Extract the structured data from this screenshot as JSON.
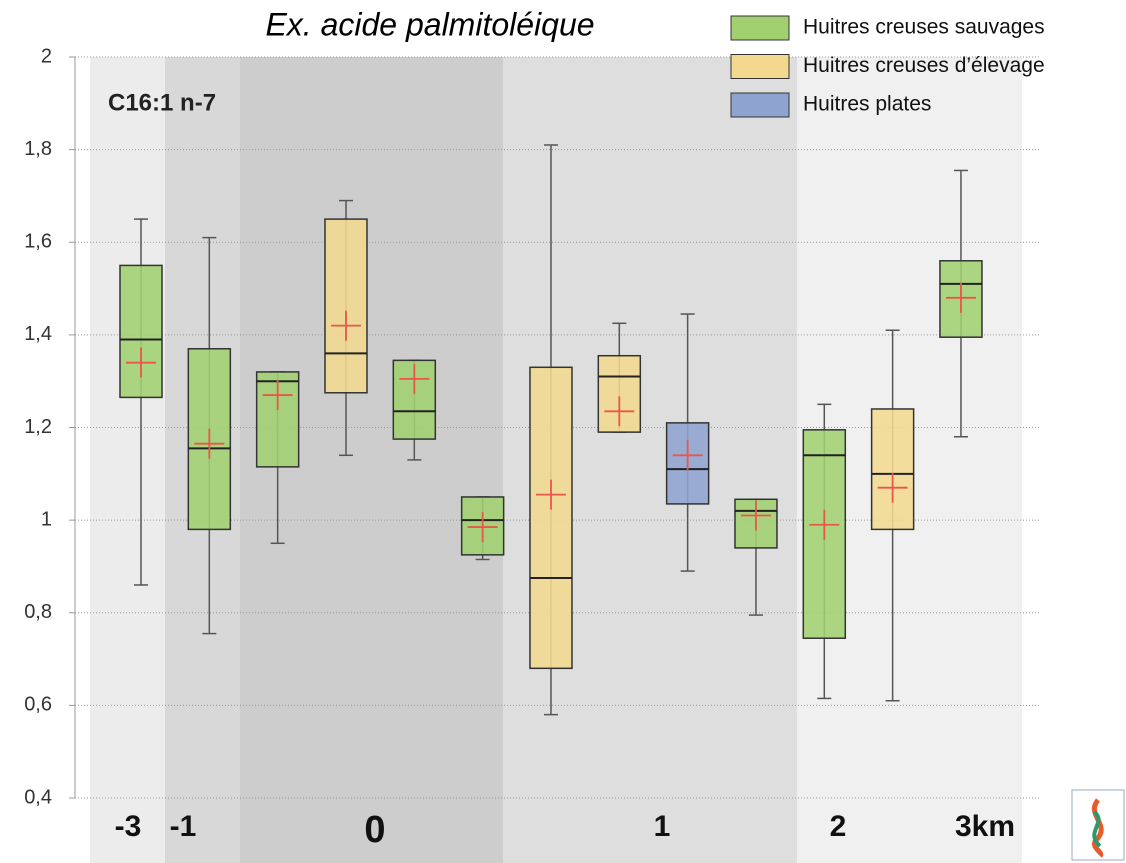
{
  "chart_data": {
    "type": "box",
    "title": "Ex. acide palmitoléique",
    "subtitle": "C16:1 n-7",
    "series": [
      {
        "name": "Huitres creuses sauvages",
        "color": "#a0d070"
      },
      {
        "name": "Huitres creuses d’élevage",
        "color": "#f3d98f"
      },
      {
        "name": "Huitres plates",
        "color": "#8fa3d1"
      }
    ],
    "boxes": [
      {
        "series": 0,
        "low": 0.86,
        "q1": 1.265,
        "median": 1.39,
        "q3": 1.55,
        "high": 1.65,
        "mean": 1.34
      },
      {
        "series": 0,
        "low": 0.755,
        "q1": 0.98,
        "median": 1.155,
        "q3": 1.37,
        "high": 1.61,
        "mean": 1.165
      },
      {
        "series": 0,
        "low": 0.95,
        "q1": 1.115,
        "median": 1.3,
        "q3": 1.32,
        "high": 1.32,
        "mean": 1.27
      },
      {
        "series": 1,
        "low": 1.14,
        "q1": 1.275,
        "median": 1.36,
        "q3": 1.65,
        "high": 1.69,
        "mean": 1.42
      },
      {
        "series": 0,
        "low": 1.13,
        "q1": 1.175,
        "median": 1.235,
        "q3": 1.345,
        "high": 1.345,
        "mean": 1.305
      },
      {
        "series": 0,
        "low": 0.915,
        "q1": 0.925,
        "median": 1.0,
        "q3": 1.05,
        "high": 1.05,
        "mean": 0.985
      },
      {
        "series": 1,
        "low": 0.58,
        "q1": 0.68,
        "median": 0.875,
        "q3": 1.33,
        "high": 1.81,
        "mean": 1.055
      },
      {
        "series": 1,
        "low": 1.19,
        "q1": 1.19,
        "median": 1.31,
        "q3": 1.355,
        "high": 1.425,
        "mean": 1.235
      },
      {
        "series": 2,
        "low": 0.89,
        "q1": 1.035,
        "median": 1.11,
        "q3": 1.21,
        "high": 1.445,
        "mean": 1.14
      },
      {
        "series": 0,
        "low": 0.795,
        "q1": 0.94,
        "median": 1.02,
        "q3": 1.045,
        "high": 1.045,
        "mean": 1.01
      },
      {
        "series": 0,
        "low": 0.615,
        "q1": 0.745,
        "median": 1.14,
        "q3": 1.195,
        "high": 1.25,
        "mean": 0.99
      },
      {
        "series": 1,
        "low": 0.61,
        "q1": 0.98,
        "median": 1.1,
        "q3": 1.24,
        "high": 1.41,
        "mean": 1.07
      },
      {
        "series": 0,
        "low": 1.18,
        "q1": 1.395,
        "median": 1.51,
        "q3": 1.56,
        "high": 1.755,
        "mean": 1.48
      }
    ],
    "mean_color": "#e8574a",
    "ylim": [
      0.4,
      2
    ],
    "yticks": [
      {
        "value": 0.4,
        "label": "0,4"
      },
      {
        "value": 0.6,
        "label": "0,6"
      },
      {
        "value": 0.8,
        "label": "0,8"
      },
      1,
      {
        "value": 1.2,
        "label": "1,2"
      },
      {
        "value": 1.4,
        "label": "1,4"
      },
      {
        "value": 1.6,
        "label": "1,6"
      },
      {
        "value": 1.8,
        "label": "1,8"
      },
      2
    ],
    "grid": true,
    "distance_labels": [
      "-3",
      "-1",
      "0",
      "1",
      "2",
      "3km"
    ]
  }
}
